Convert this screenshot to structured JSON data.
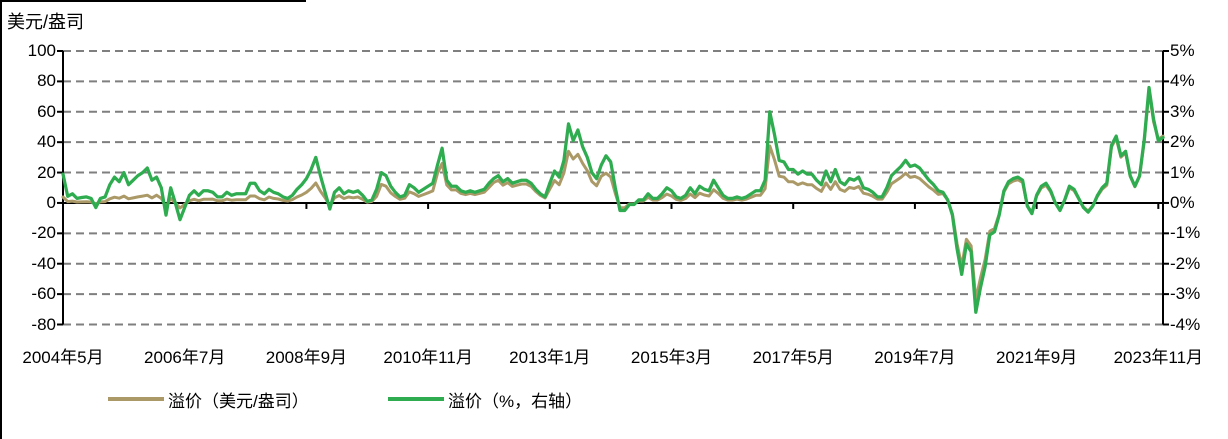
{
  "chart_data": {
    "type": "line",
    "axis_left": {
      "title": "美元/盎司",
      "min": -80,
      "max": 100,
      "tick_step": 20,
      "tick_labels": [
        "100",
        "80",
        "60",
        "40",
        "20",
        "0",
        "-20",
        "-40",
        "-60",
        "-80"
      ]
    },
    "axis_right": {
      "min": -4,
      "max": 5,
      "tick_labels": [
        "5%",
        "4%",
        "3%",
        "2%",
        "1%",
        "0%",
        "-1%",
        "-2%",
        "-3%",
        "-4%"
      ]
    },
    "x_axis": {
      "frequency": "monthly",
      "start": "2004-05",
      "end": "2023-12",
      "tick_interval_months": 26,
      "tick_labels": [
        "2004年5月",
        "2006年7月",
        "2008年9月",
        "2010年11月",
        "2013年1月",
        "2015年3月",
        "2017年5月",
        "2019年7月",
        "2021年9月",
        "2023年11月"
      ]
    },
    "grid": {
      "show": true,
      "color": "#7F7F7F",
      "dashed": true
    },
    "axis_color": "#000000",
    "series": [
      {
        "name": "溢价（美元/盎司）",
        "axis": "left",
        "unit": "美元/盎司",
        "color": "#AB9A68",
        "values": [
          3.9,
          0.9,
          1.2,
          0.6,
          0.7,
          0.8,
          0.6,
          -0.6,
          0.7,
          0.9,
          2.7,
          3.8,
          3.1,
          4.5,
          2.7,
          3.3,
          4.0,
          4.5,
          5.1,
          3.3,
          5.1,
          3.0,
          -2.4,
          3.0,
          0.0,
          -3.3,
          -0.9,
          1.5,
          2.4,
          1.5,
          2.4,
          2.4,
          2.5,
          1.4,
          1.4,
          2.5,
          1.8,
          2.1,
          2.1,
          2.1,
          4.6,
          4.6,
          2.8,
          2.1,
          3.9,
          3.0,
          2.6,
          1.7,
          1.3,
          2.2,
          3.9,
          5.2,
          7.0,
          9.6,
          13.1,
          7.8,
          3.4,
          -1.9,
          3.4,
          4.9,
          2.9,
          3.9,
          3.4,
          3.9,
          2.4,
          0.5,
          1.0,
          4.4,
          12.2,
          11.0,
          6.7,
          4.3,
          2.4,
          3.1,
          7.3,
          6.1,
          4.3,
          5.5,
          6.7,
          7.9,
          19.6,
          26.0,
          11.8,
          8.6,
          8.6,
          6.3,
          5.5,
          6.3,
          5.5,
          6.3,
          7.1,
          10.2,
          13.4,
          15.0,
          11.7,
          13.4,
          10.9,
          11.7,
          12.5,
          12.5,
          10.9,
          7.5,
          5.0,
          3.3,
          9.2,
          14.8,
          12.0,
          19.7,
          34.0,
          28.9,
          32.0,
          26.1,
          21.2,
          14.1,
          11.3,
          17.6,
          19.6,
          17.1,
          6.3,
          -3.2,
          -3.2,
          -0.6,
          -0.6,
          1.3,
          1.3,
          3.8,
          1.9,
          1.9,
          3.5,
          5.8,
          4.6,
          2.3,
          1.7,
          2.9,
          5.8,
          3.5,
          6.4,
          5.2,
          4.6,
          8.7,
          6.3,
          3.1,
          1.9,
          1.9,
          2.5,
          1.9,
          2.5,
          3.8,
          5.0,
          5.0,
          9.4,
          37.5,
          28.4,
          17.6,
          17.0,
          13.9,
          13.9,
          12.0,
          13.2,
          12.0,
          12.0,
          9.5,
          7.6,
          13.2,
          8.9,
          14.0,
          8.9,
          7.6,
          10.2,
          9.5,
          10.8,
          6.4,
          5.7,
          4.4,
          2.5,
          2.5,
          7.0,
          12.6,
          14.7,
          16.8,
          19.6,
          16.8,
          17.5,
          16.1,
          13.3,
          10.5,
          8.4,
          5.6,
          6.2,
          1.8,
          -7.1,
          -26.6,
          -41.6,
          -23.9,
          -28.3,
          -63.7,
          -49.6,
          -37.2,
          -18.6,
          -16.8,
          -7.2,
          7.2,
          12.6,
          14.4,
          15.3,
          13.5,
          -1.8,
          -6.3,
          4.5,
          9.9,
          11.7,
          7.2,
          0.0,
          -4.5,
          1.8,
          9.9,
          8.1,
          2.7,
          -2.7,
          -5.4,
          -1.8,
          4.5,
          9.0,
          11.7,
          36.9,
          42.7,
          30.1,
          33.0,
          17.5,
          10.7,
          17.5,
          40.7,
          73.7,
          53.4,
          42.0,
          44.0
        ]
      },
      {
        "name": "溢价（%，右轴）",
        "axis": "right",
        "unit": "%",
        "color": "#2EAC4F",
        "values": [
          0.95,
          0.22,
          0.3,
          0.15,
          0.18,
          0.2,
          0.15,
          -0.15,
          0.15,
          0.2,
          0.6,
          0.85,
          0.7,
          1.0,
          0.6,
          0.75,
          0.9,
          1.0,
          1.15,
          0.75,
          0.85,
          0.5,
          -0.4,
          0.5,
          0.0,
          -0.55,
          -0.15,
          0.25,
          0.4,
          0.25,
          0.4,
          0.4,
          0.35,
          0.2,
          0.2,
          0.35,
          0.25,
          0.3,
          0.3,
          0.3,
          0.65,
          0.65,
          0.4,
          0.3,
          0.45,
          0.35,
          0.3,
          0.2,
          0.15,
          0.25,
          0.45,
          0.6,
          0.8,
          1.1,
          1.5,
          0.9,
          0.35,
          -0.2,
          0.35,
          0.5,
          0.3,
          0.4,
          0.35,
          0.4,
          0.25,
          0.05,
          0.1,
          0.45,
          1.0,
          0.9,
          0.55,
          0.35,
          0.2,
          0.25,
          0.6,
          0.5,
          0.35,
          0.45,
          0.55,
          0.65,
          1.25,
          1.8,
          0.75,
          0.55,
          0.55,
          0.4,
          0.35,
          0.4,
          0.35,
          0.4,
          0.45,
          0.65,
          0.8,
          0.9,
          0.7,
          0.8,
          0.65,
          0.7,
          0.75,
          0.75,
          0.65,
          0.45,
          0.3,
          0.2,
          0.65,
          1.05,
          0.85,
          1.4,
          2.6,
          2.05,
          2.4,
          1.85,
          1.5,
          1.0,
          0.8,
          1.25,
          1.55,
          1.35,
          0.5,
          -0.25,
          -0.25,
          -0.05,
          -0.05,
          0.1,
          0.1,
          0.3,
          0.15,
          0.15,
          0.3,
          0.5,
          0.4,
          0.2,
          0.15,
          0.25,
          0.5,
          0.3,
          0.55,
          0.45,
          0.4,
          0.75,
          0.5,
          0.25,
          0.15,
          0.15,
          0.2,
          0.15,
          0.2,
          0.3,
          0.4,
          0.4,
          0.75,
          3.0,
          2.25,
          1.4,
          1.35,
          1.1,
          1.1,
          0.95,
          1.05,
          0.95,
          0.95,
          0.75,
          0.6,
          1.05,
          0.7,
          1.1,
          0.7,
          0.6,
          0.8,
          0.75,
          0.85,
          0.5,
          0.45,
          0.35,
          0.2,
          0.2,
          0.5,
          0.9,
          1.05,
          1.2,
          1.4,
          1.2,
          1.25,
          1.15,
          0.95,
          0.75,
          0.6,
          0.4,
          0.35,
          0.1,
          -0.4,
          -1.5,
          -2.35,
          -1.35,
          -1.6,
          -3.6,
          -2.8,
          -2.1,
          -1.05,
          -0.95,
          -0.4,
          0.4,
          0.7,
          0.8,
          0.85,
          0.75,
          -0.1,
          -0.35,
          0.25,
          0.55,
          0.65,
          0.4,
          0.0,
          -0.25,
          0.1,
          0.55,
          0.45,
          0.15,
          -0.15,
          -0.3,
          -0.1,
          0.25,
          0.5,
          0.65,
          1.9,
          2.2,
          1.55,
          1.7,
          0.9,
          0.55,
          0.9,
          2.1,
          3.8,
          2.75,
          2.05,
          2.15
        ]
      }
    ],
    "legend": {
      "position": "bottom",
      "items": [
        "溢价（美元/盎司）",
        "溢价（%，右轴）"
      ]
    }
  }
}
